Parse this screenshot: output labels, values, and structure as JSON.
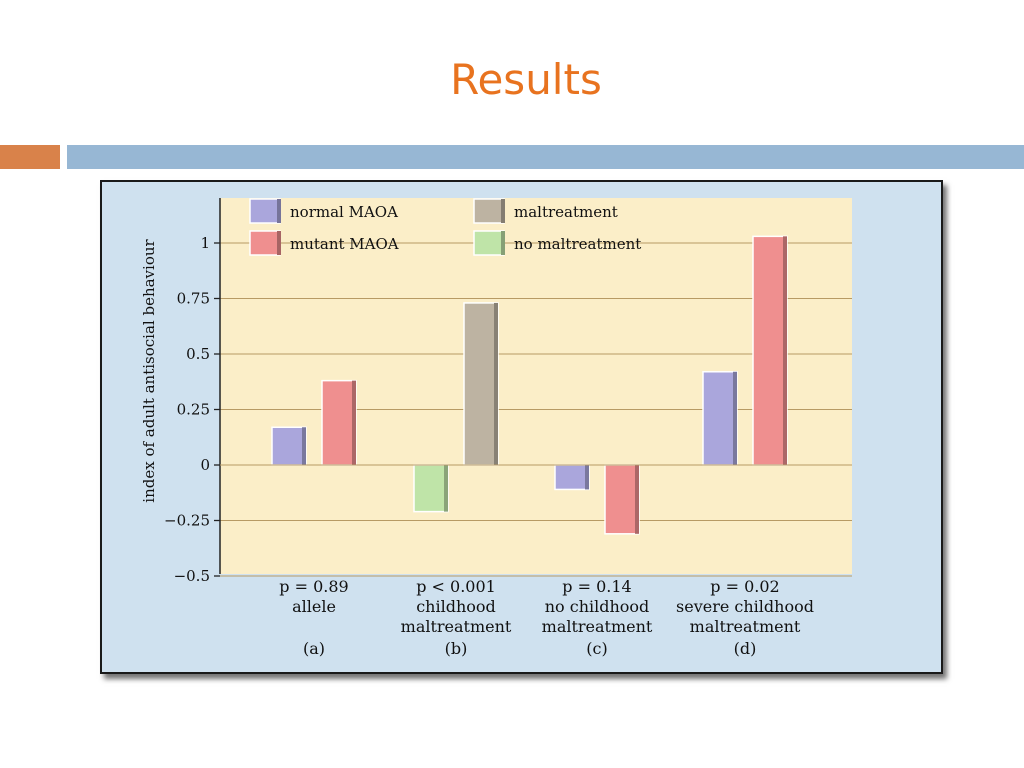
{
  "slide": {
    "title": "Results"
  },
  "colors": {
    "title": "#e8731f",
    "accent_bar": "#d9824a",
    "main_bar": "#97b7d4",
    "figure_bg": "#cfe1ef",
    "plot_bg": "#fbeec8"
  },
  "chart_data": {
    "type": "bar",
    "ylabel": "index of adult antisocial behaviour",
    "ylim": [
      -0.5,
      1.2
    ],
    "yticks": [
      -0.5,
      -0.25,
      0,
      0.25,
      0.5,
      0.75,
      1
    ],
    "ytick_labels": [
      "−0.5",
      "−0.25",
      "0",
      "0.25",
      "0.5",
      "0.75",
      "1"
    ],
    "grid": true,
    "legend_position": "top-left",
    "legend": [
      {
        "label": "normal MAOA",
        "color": "#aaa6dc"
      },
      {
        "label": "mutant MAOA",
        "color": "#ef8f8f"
      },
      {
        "label": "maltreatment",
        "color": "#bdb3a2"
      },
      {
        "label": "no maltreatment",
        "color": "#bfe4a8"
      }
    ],
    "groups": [
      {
        "p": "p = 0.89",
        "caption": [
          "allele"
        ],
        "letter": "(a)",
        "bars": [
          {
            "series": "normal MAOA",
            "value": 0.17
          },
          {
            "series": "mutant MAOA",
            "value": 0.38
          }
        ]
      },
      {
        "p": "p < 0.001",
        "caption": [
          "childhood",
          "maltreatment"
        ],
        "letter": "(b)",
        "bars": [
          {
            "series": "no maltreatment",
            "value": -0.21
          },
          {
            "series": "maltreatment",
            "value": 0.73
          }
        ]
      },
      {
        "p": "p = 0.14",
        "caption": [
          "no childhood",
          "maltreatment"
        ],
        "letter": "(c)",
        "bars": [
          {
            "series": "normal MAOA",
            "value": -0.11
          },
          {
            "series": "mutant MAOA",
            "value": -0.31
          }
        ]
      },
      {
        "p": "p = 0.02",
        "caption": [
          "severe childhood",
          "maltreatment"
        ],
        "letter": "(d)",
        "bars": [
          {
            "series": "normal MAOA",
            "value": 0.42
          },
          {
            "series": "mutant MAOA",
            "value": 1.03
          }
        ]
      }
    ]
  }
}
